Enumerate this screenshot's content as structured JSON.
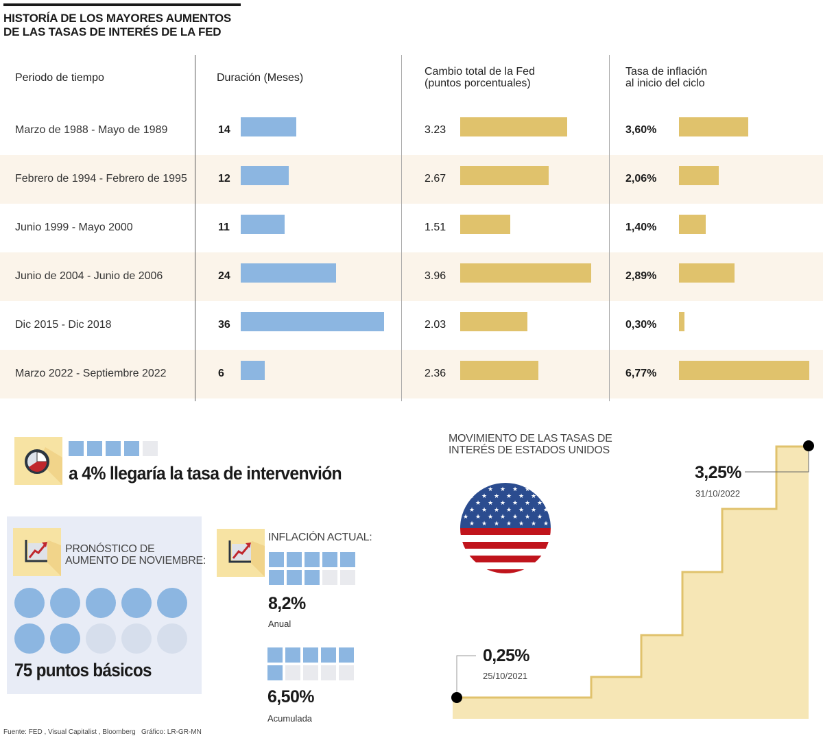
{
  "title_lines": [
    "HISTORÍA DE LOS MAYORES AUMENTOS",
    "DE LAS TASAS DE INTERÉS DE LA FED"
  ],
  "table": {
    "headers": {
      "period": "Periodo de tiempo",
      "duration": "Duración (Meses)",
      "change": [
        "Cambio total de la Fed",
        "(puntos porcentuales)"
      ],
      "inflation": [
        "Tasa de inflación",
        "al inicio del ciclo"
      ]
    },
    "rows": [
      {
        "period": "Marzo de 1988 - Mayo de 1989",
        "duration": "14",
        "change": "3.23",
        "inflation": "3,60%"
      },
      {
        "period": "Febrero de 1994 - Febrero de 1995",
        "duration": "12",
        "change": "2.67",
        "inflation": "2,06%"
      },
      {
        "period": "Junio 1999 - Mayo 2000",
        "duration": "11",
        "change": "1.51",
        "inflation": "1,40%"
      },
      {
        "period": "Junio de 2004 - Junio de 2006",
        "duration": "24",
        "change": "3.96",
        "inflation": "2,89%"
      },
      {
        "period": "Dic 2015 - Dic 2018",
        "duration": "36",
        "change": "2.03",
        "inflation": "0,30%"
      },
      {
        "period": "Marzo 2022 - Septiembre 2022",
        "duration": "6",
        "change": "2.36",
        "inflation": "6,77%"
      }
    ]
  },
  "chart_data": [
    {
      "type": "bar",
      "title": "Duración (Meses)",
      "categories": [
        "Marzo de 1988 - Mayo de 1989",
        "Febrero de 1994 - Febrero de 1995",
        "Junio 1999 - Mayo 2000",
        "Junio de 2004 - Junio de 2006",
        "Dic 2015 - Dic 2018",
        "Marzo 2022 - Septiembre 2022"
      ],
      "values": [
        14,
        12,
        11,
        24,
        36,
        6
      ],
      "orientation": "horizontal",
      "color": "#8cb6e1"
    },
    {
      "type": "bar",
      "title": "Cambio total de la Fed (puntos porcentuales)",
      "categories": [
        "Marzo de 1988 - Mayo de 1989",
        "Febrero de 1994 - Febrero de 1995",
        "Junio 1999 - Mayo 2000",
        "Junio de 2004 - Junio de 2006",
        "Dic 2015 - Dic 2018",
        "Marzo 2022 - Septiembre 2022"
      ],
      "values": [
        3.23,
        2.67,
        1.51,
        3.96,
        2.03,
        2.36
      ],
      "orientation": "horizontal",
      "color": "#e0c26c"
    },
    {
      "type": "bar",
      "title": "Tasa de inflación al inicio del ciclo",
      "categories": [
        "Marzo de 1988 - Mayo de 1989",
        "Febrero de 1994 - Febrero de 1995",
        "Junio 1999 - Mayo 2000",
        "Junio de 2004 - Junio de 2006",
        "Dic 2015 - Dic 2018",
        "Marzo 2022 - Septiembre 2022"
      ],
      "values": [
        3.6,
        2.06,
        1.4,
        2.89,
        0.3,
        6.77
      ],
      "unit": "%",
      "orientation": "horizontal",
      "color": "#e0c26c"
    },
    {
      "type": "area",
      "title": "MOVIMIENTO DE LAS TASAS DE INTERÉS DE ESTADOS UNIDOS",
      "step": true,
      "start": {
        "label": "0,25%",
        "date": "25/10/2021",
        "value": 0.25
      },
      "end": {
        "label": "3,25%",
        "date": "31/10/2022",
        "value": 3.25
      },
      "steps": 7,
      "color": "#f6e6b5",
      "line_color": "#e0c26c"
    }
  ],
  "intervention": {
    "text": "a 4% llegaría la tasa de intervenvión",
    "squares_filled": 4,
    "squares_total": 5,
    "icon": "pie-chart-icon"
  },
  "forecast": {
    "label_lines": [
      "PRONÓSTICO DE",
      "AUMENTO DE NOVIEMBRE:"
    ],
    "circles_filled": 7,
    "circles_total": 10,
    "value": "75 puntos básicos",
    "icon": "trend-chart-icon"
  },
  "inflation_now": {
    "label": "INFLACIÓN ACTUAL:",
    "annual": {
      "value": "8,2%",
      "caption": "Anual",
      "squares_filled": 8,
      "squares_total": 10
    },
    "accumulated": {
      "value": "6,50%",
      "caption": "Acumulada",
      "squares_filled": 6,
      "squares_total": 10
    },
    "icon": "trend-chart-icon"
  },
  "rates_chart": {
    "title_lines": [
      "MOVIMIENTO DE LAS TASAS DE",
      "INTERÉS DE ESTADOS UNIDOS"
    ],
    "start_value": "0,25%",
    "start_date": "25/10/2021",
    "end_value": "3,25%",
    "end_date": "31/10/2022"
  },
  "footer": "Fuente: FED , Visual Capitalist , Bloomberg   Gráfico: LR-GR-MN"
}
